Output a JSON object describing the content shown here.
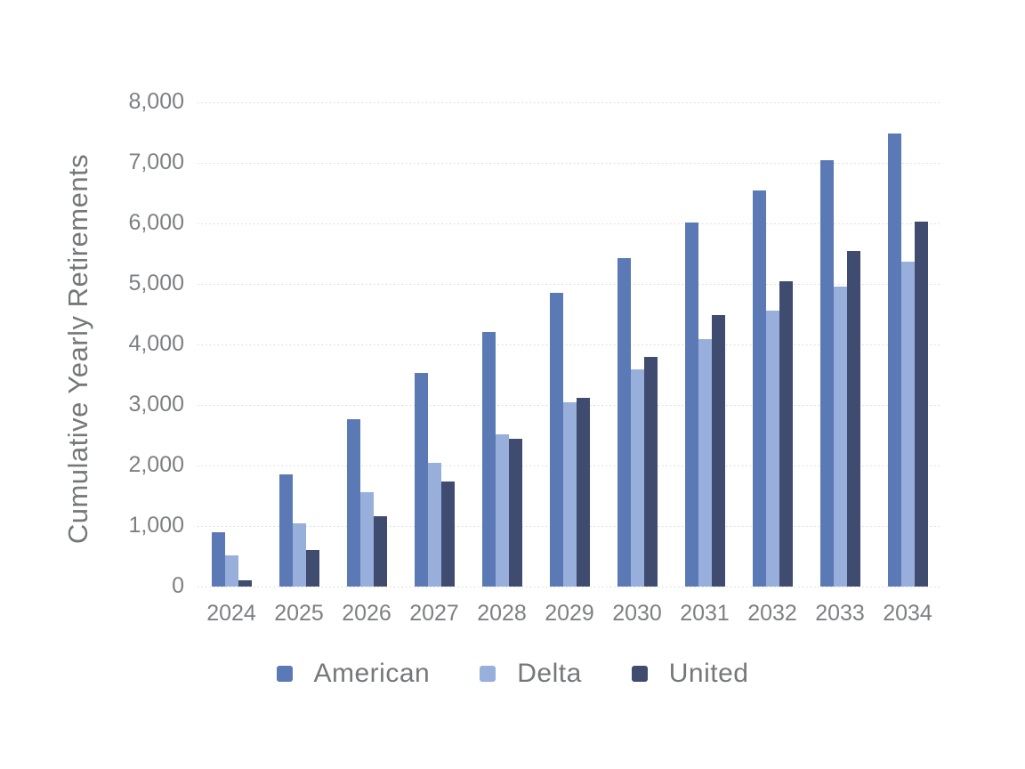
{
  "chart_data": {
    "type": "bar",
    "title": "",
    "xlabel": "",
    "ylabel": "Cumulative Yearly Retirements",
    "categories": [
      "2024",
      "2025",
      "2026",
      "2027",
      "2028",
      "2029",
      "2030",
      "2031",
      "2032",
      "2033",
      "2034"
    ],
    "series": [
      {
        "name": "American",
        "color": "#5b79b5",
        "values": [
          900,
          1850,
          2760,
          3530,
          4210,
          4860,
          5430,
          6020,
          6540,
          7040,
          7490
        ]
      },
      {
        "name": "Delta",
        "color": "#98aedb",
        "values": [
          510,
          1040,
          1560,
          2040,
          2510,
          3040,
          3590,
          4090,
          4560,
          4960,
          5370
        ]
      },
      {
        "name": "United",
        "color": "#3f4c6f",
        "values": [
          110,
          600,
          1160,
          1740,
          2440,
          3120,
          3800,
          4490,
          5040,
          5540,
          6030
        ]
      }
    ],
    "ylim": [
      0,
      8000
    ],
    "ytick_step": 1000,
    "ytick_labels": [
      "0",
      "1,000",
      "2,000",
      "3,000",
      "4,000",
      "5,000",
      "6,000",
      "7,000",
      "8,000"
    ],
    "grid": "horizontal-dotted",
    "legend_position": "bottom",
    "colors": {
      "background": "#ffffff",
      "gridline": "#d7d7d9",
      "tick_text": "#7d8083",
      "axis_title_text": "#75787b",
      "legend_text": "#75787b"
    }
  }
}
